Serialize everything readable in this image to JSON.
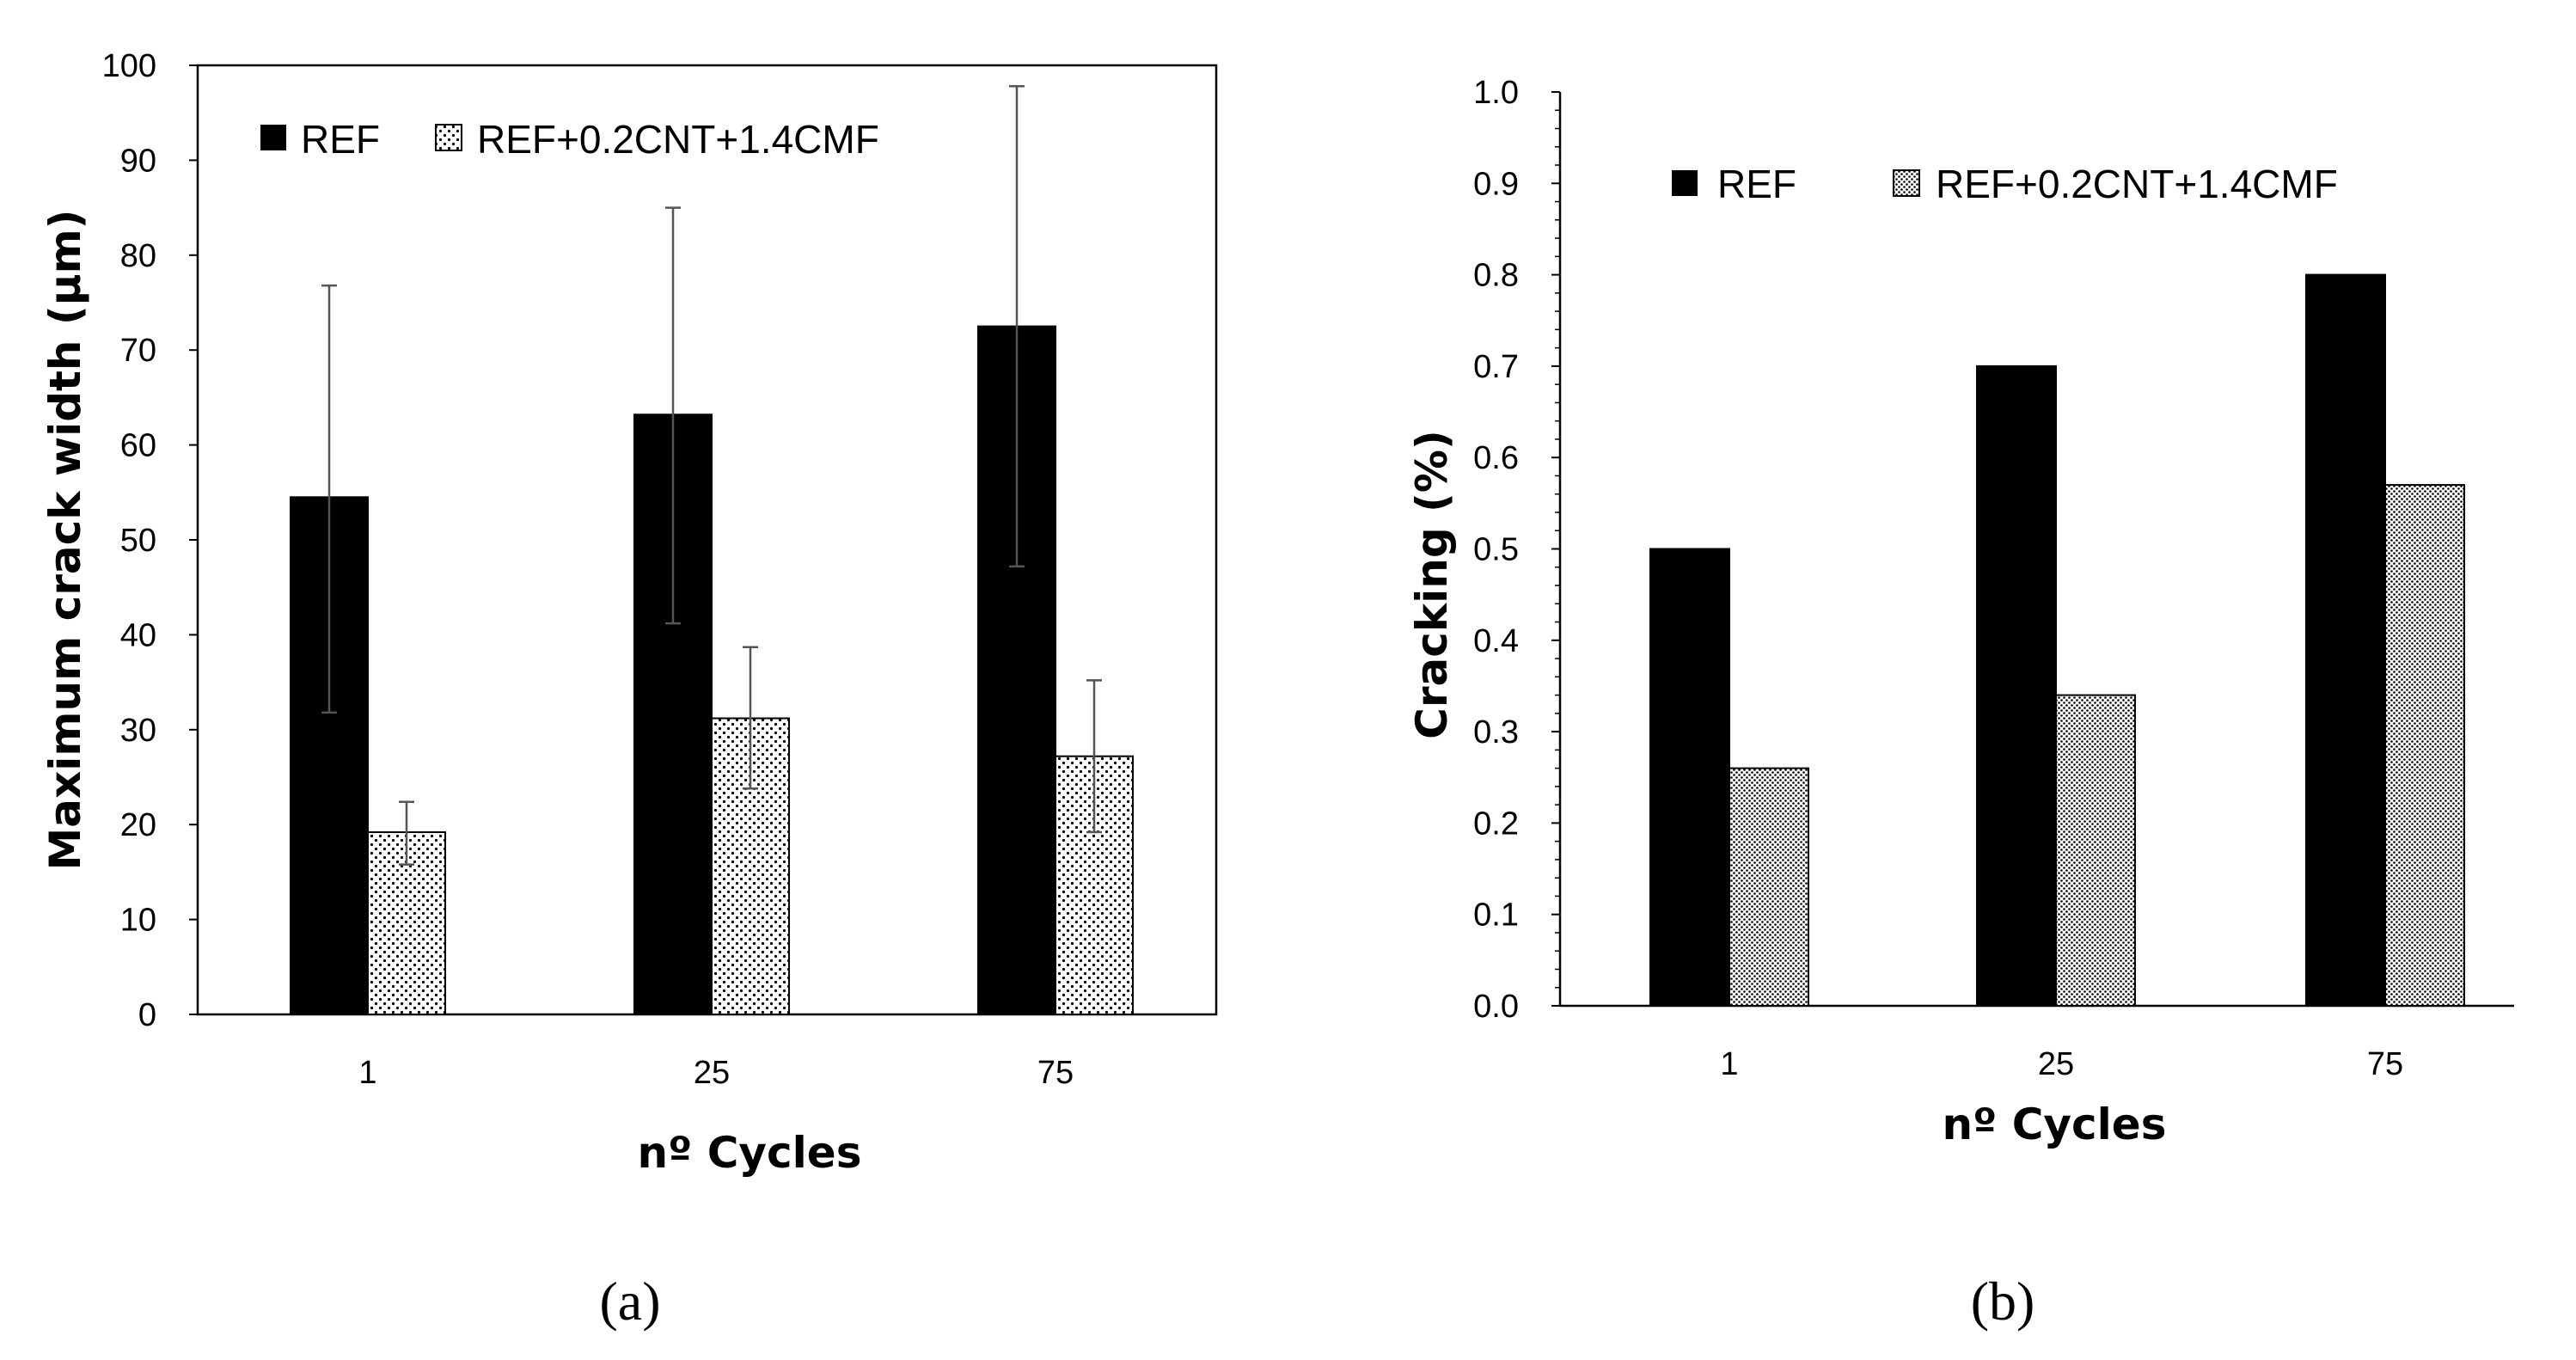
{
  "chart_data": [
    {
      "type": "bar",
      "panel_label": "(a)",
      "title": "",
      "xlabel": "nº Cycles",
      "ylabel": "Maximum crack width (µm)",
      "categories": [
        "1",
        "25",
        "75"
      ],
      "ylim": [
        0,
        100
      ],
      "yticks": [
        "0",
        "10",
        "20",
        "30",
        "40",
        "50",
        "60",
        "70",
        "80",
        "90",
        "100"
      ],
      "grid": false,
      "legend": "top-left",
      "series": [
        {
          "name": "REF",
          "values": [
            54.5,
            63.2,
            72.5
          ],
          "error_low": [
            31.8,
            41.2,
            47.2
          ],
          "error_high": [
            76.8,
            85.0,
            97.8
          ]
        },
        {
          "name": "REF+0.2CNT+1.4CMF",
          "values": [
            19.2,
            31.2,
            27.2
          ],
          "error_low": [
            15.8,
            23.8,
            19.2
          ],
          "error_high": [
            22.4,
            38.7,
            35.2
          ]
        }
      ],
      "colors": {
        "REF": "#000000",
        "REF+0.2CNT+1.4CMF": "pattern-dots"
      }
    },
    {
      "type": "bar",
      "panel_label": "(b)",
      "title": "",
      "xlabel": "nº Cycles",
      "ylabel": "Cracking (%)",
      "categories": [
        "1",
        "25",
        "75"
      ],
      "ylim": [
        0,
        1
      ],
      "yticks": [
        "0.0",
        "0.1",
        "0.2",
        "0.3",
        "0.4",
        "0.5",
        "0.6",
        "0.7",
        "0.8",
        "0.9",
        "1.0"
      ],
      "grid": false,
      "legend": "top-left",
      "series": [
        {
          "name": "REF",
          "values": [
            0.5,
            0.7,
            0.8
          ]
        },
        {
          "name": "REF+0.2CNT+1.4CMF",
          "values": [
            0.26,
            0.34,
            0.57
          ]
        }
      ],
      "colors": {
        "REF": "#000000",
        "REF+0.2CNT+1.4CMF": "pattern-dense-dots"
      }
    }
  ]
}
